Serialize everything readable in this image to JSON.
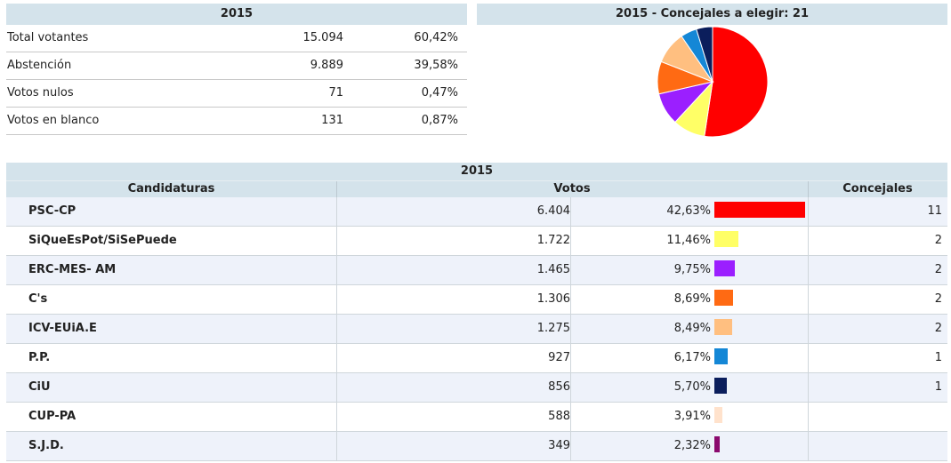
{
  "summary": {
    "title": "2015",
    "rows": [
      {
        "label": "Total votantes",
        "value": "15.094",
        "pct": "60,42%"
      },
      {
        "label": "Abstención",
        "value": "9.889",
        "pct": "39,58%"
      },
      {
        "label": "Votos nulos",
        "value": "71",
        "pct": "0,47%"
      },
      {
        "label": "Votos en blanco",
        "value": "131",
        "pct": "0,87%"
      }
    ]
  },
  "pie_title": "2015 - Concejales a elegir: 21",
  "results": {
    "title": "2015",
    "col_candidaturas": "Candidaturas",
    "col_votos": "Votos",
    "col_concejales": "Concejales"
  },
  "chart_data": [
    {
      "type": "table",
      "title": "2015",
      "columns": [
        "Candidaturas",
        "Votos",
        "Concejales"
      ],
      "rows": [
        {
          "name": "PSC-CP",
          "votes": "6.404",
          "pct_label": "42,63%",
          "pct": 42.63,
          "concejales": "11",
          "color": "#ff0000"
        },
        {
          "name": "SiQueEsPot/SiSePuede",
          "votes": "1.722",
          "pct_label": "11,46%",
          "pct": 11.46,
          "concejales": "2",
          "color": "#ffff66"
        },
        {
          "name": "ERC-MES- AM",
          "votes": "1.465",
          "pct_label": "9,75%",
          "pct": 9.75,
          "concejales": "2",
          "color": "#9b1fff"
        },
        {
          "name": "C's",
          "votes": "1.306",
          "pct_label": "8,69%",
          "pct": 8.69,
          "concejales": "2",
          "color": "#ff6a13"
        },
        {
          "name": "ICV-EUiA.E",
          "votes": "1.275",
          "pct_label": "8,49%",
          "pct": 8.49,
          "concejales": "2",
          "color": "#ffbf80"
        },
        {
          "name": "P.P.",
          "votes": "927",
          "pct_label": "6,17%",
          "pct": 6.17,
          "concejales": "1",
          "color": "#1487d6"
        },
        {
          "name": "CiU",
          "votes": "856",
          "pct_label": "5,70%",
          "pct": 5.7,
          "concejales": "1",
          "color": "#0b1e5c"
        },
        {
          "name": "CUP-PA",
          "votes": "588",
          "pct_label": "3,91%",
          "pct": 3.91,
          "concejales": "",
          "color": "#ffe2cc"
        },
        {
          "name": "S.J.D.",
          "votes": "349",
          "pct_label": "2,32%",
          "pct": 2.32,
          "concejales": "",
          "color": "#8b0a6e"
        }
      ]
    },
    {
      "type": "pie",
      "title": "2015 - Concejales a elegir: 21",
      "slices": [
        {
          "label": "PSC-CP",
          "value": 11,
          "color": "#ff0000"
        },
        {
          "label": "SiQueEsPot/SiSePuede",
          "value": 2,
          "color": "#ffff66"
        },
        {
          "label": "ERC-MES- AM",
          "value": 2,
          "color": "#9b1fff"
        },
        {
          "label": "C's",
          "value": 2,
          "color": "#ff6a13"
        },
        {
          "label": "ICV-EUiA.E",
          "value": 2,
          "color": "#ffbf80"
        },
        {
          "label": "P.P.",
          "value": 1,
          "color": "#1487d6"
        },
        {
          "label": "CiU",
          "value": 1,
          "color": "#0b1e5c"
        }
      ]
    }
  ]
}
